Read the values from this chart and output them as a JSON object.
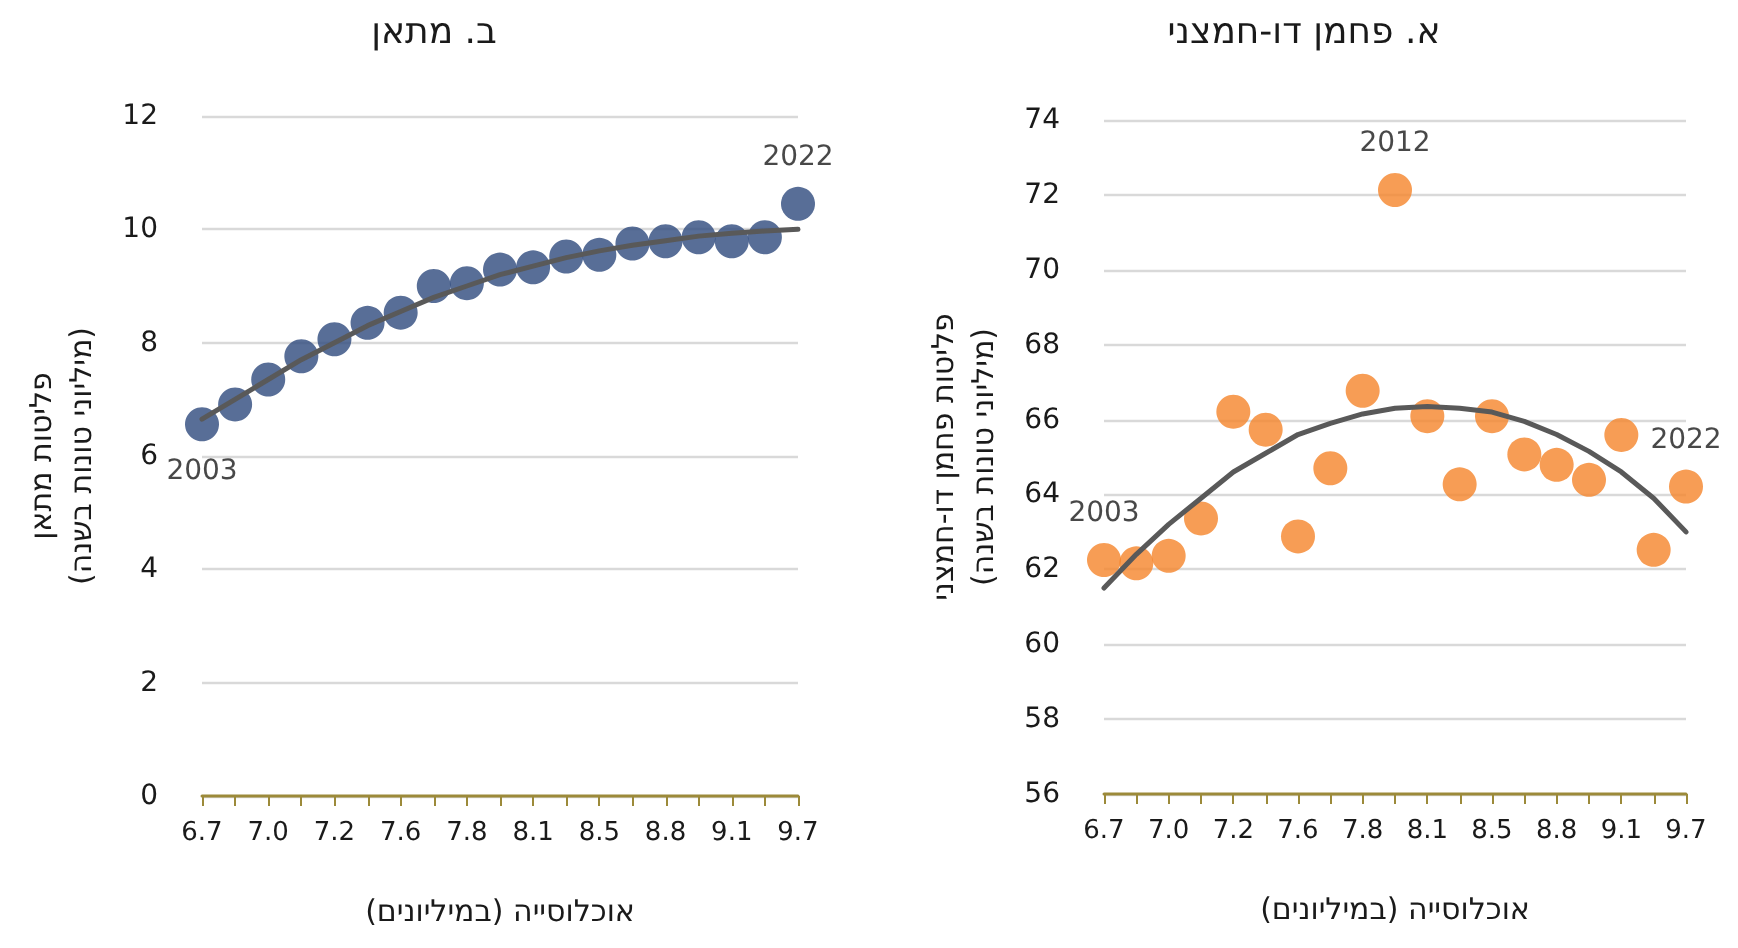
{
  "chart_data": [
    {
      "type": "scatter",
      "title": "א. פחמן דו-חמצני",
      "xlabel": "אוכלוסייה (במיליונים)",
      "ylabel": "פליטות פחמן דו-חמצני\n(מיליוני טונות בשנה)",
      "categories": [
        "6.7",
        null,
        "7.0",
        null,
        "7.2",
        null,
        "7.6",
        null,
        "7.8",
        null,
        "8.1",
        null,
        "8.5",
        null,
        "8.8",
        null,
        "9.1",
        null,
        "9.7"
      ],
      "series": [
        {
          "color": "#f5842a",
          "marker": "circle",
          "values": [
            62.25,
            62.16,
            62.36,
            63.36,
            66.21,
            65.73,
            62.88,
            64.7,
            66.77,
            72.13,
            66.09,
            64.27,
            66.09,
            65.07,
            64.79,
            64.39,
            65.59,
            62.52,
            64.21
          ]
        },
        {
          "type": "line",
          "color": "#595959",
          "marker": "none",
          "values": [
            61.5,
            62.4,
            63.2,
            63.9,
            64.6,
            65.1,
            65.6,
            65.9,
            66.15,
            66.3,
            66.35,
            66.3,
            66.2,
            65.95,
            65.6,
            65.15,
            64.6,
            63.9,
            63.0
          ]
        }
      ],
      "annotations": [
        {
          "text": "2003",
          "x": "6.7",
          "y": 62.25
        },
        {
          "text": "2012",
          "y": 72.13
        },
        {
          "text": "2022",
          "x": "9.7",
          "y": 64.21
        }
      ],
      "ylim": [
        56,
        74
      ],
      "yticks": [
        56,
        58,
        60,
        62,
        64,
        66,
        68,
        70,
        72,
        74
      ],
      "grid": "y"
    },
    {
      "type": "scatter",
      "title": "ב. מתאן",
      "xlabel": "אוכלוסייה (במיליונים)",
      "ylabel": "פליטות מתאן\n(מיליוני טונות בשנה)",
      "categories": [
        "6.7",
        null,
        "7.0",
        null,
        "7.2",
        null,
        "7.6",
        null,
        "7.8",
        null,
        "8.1",
        null,
        "8.5",
        null,
        "8.8",
        null,
        "9.1",
        null,
        "9.7"
      ],
      "series": [
        {
          "color": "#2e4a7d",
          "marker": "circle",
          "values": [
            6.56,
            6.91,
            7.35,
            7.76,
            8.06,
            8.35,
            8.53,
            9.0,
            9.05,
            9.29,
            9.33,
            9.52,
            9.55,
            9.75,
            9.79,
            9.86,
            9.79,
            9.86,
            10.45
          ]
        },
        {
          "type": "line",
          "color": "#595959",
          "marker": "none",
          "values": [
            6.65,
            7.0,
            7.35,
            7.7,
            8.0,
            8.3,
            8.55,
            8.8,
            9.0,
            9.2,
            9.35,
            9.5,
            9.62,
            9.72,
            9.8,
            9.88,
            9.93,
            9.97,
            10.0
          ]
        }
      ],
      "annotations": [
        {
          "text": "2003",
          "x": "6.7",
          "y": 6.56
        },
        {
          "text": "2022",
          "x": "9.7",
          "y": 10.45
        }
      ],
      "ylim": [
        0,
        12
      ],
      "yticks": [
        0,
        2,
        4,
        6,
        8,
        10,
        12
      ],
      "grid": "y"
    }
  ]
}
